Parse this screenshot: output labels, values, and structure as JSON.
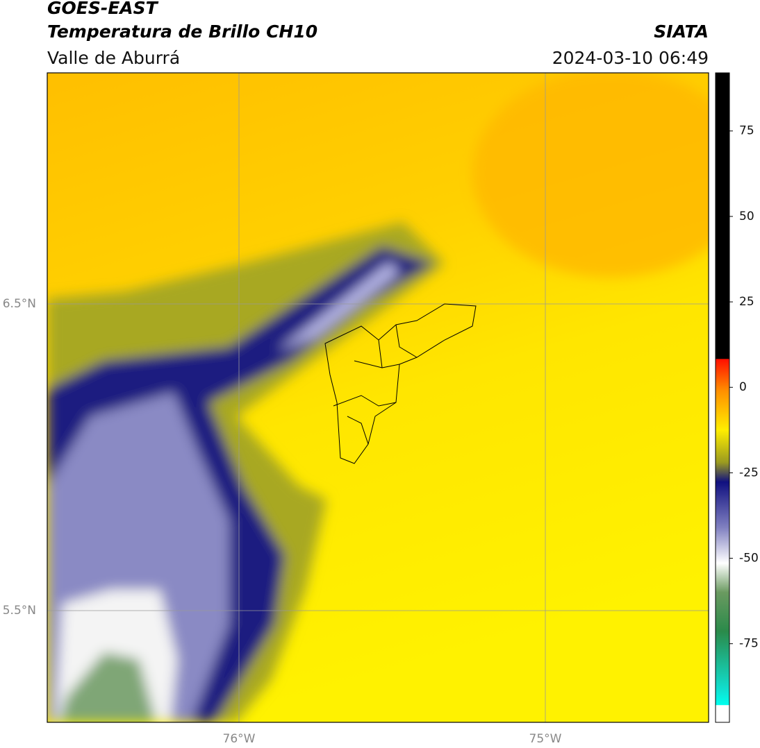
{
  "header": {
    "title": "GOES-EAST",
    "subtitle": "Temperatura de Brillo CH10",
    "region": "Valle de Aburrá",
    "org": "SIATA",
    "datetime": "2024-03-10 06:49"
  },
  "map": {
    "lat_labels": [
      "6.5°N",
      "5.5°N"
    ],
    "lon_labels": [
      "76°W",
      "75°W"
    ]
  },
  "colorbar": {
    "lim": [
      -98,
      92
    ],
    "ticks": [
      75,
      50,
      25,
      0,
      -25,
      -50,
      -75
    ]
  }
}
